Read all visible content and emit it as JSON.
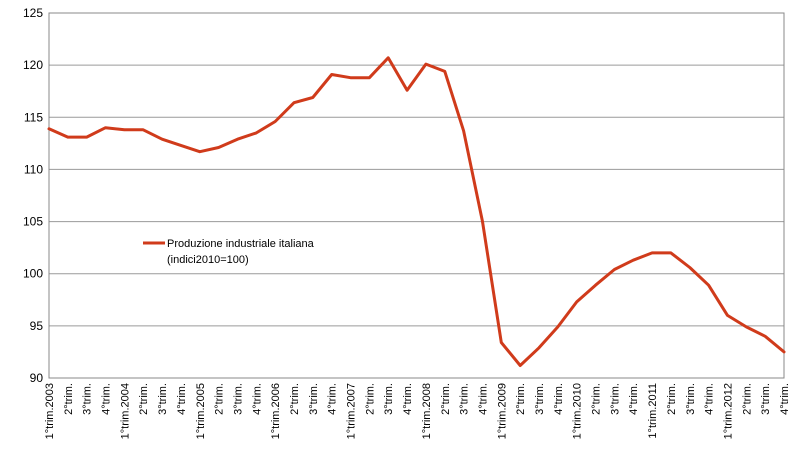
{
  "chart_data": {
    "type": "line",
    "x_label_size": "11px",
    "categories": [
      "1°trim.2003",
      "2°trim.",
      "3°trim.",
      "4°trim.",
      "1°trim.2004",
      "2°trim.",
      "3°trim.",
      "4°trim.",
      "1°trim.2005",
      "2°trim.",
      "3°trim.",
      "4°trim.",
      "1°trim.2006",
      "2°trim.",
      "3°trim.",
      "4°trim.",
      "1°trim.2007",
      "2°trim.",
      "3°trim.",
      "4°trim.",
      "1°trim.2008",
      "2°trim.",
      "3°trim.",
      "4°trim.",
      "1°trim.2009",
      "2°trim.",
      "3°trim.",
      "4°trim.",
      "1°trim.2010",
      "2°trim.",
      "3°trim.",
      "4°trim.",
      "1°trim.2011",
      "2°trim.",
      "3°trim.",
      "4°trim.",
      "1°trim.2012",
      "2°trim.",
      "3°trim.",
      "4°trim."
    ],
    "series": [
      {
        "name": "Produzione industriale italiana (indici2010=100)",
        "color": "#d03b1b",
        "values": [
          113.9,
          113.1,
          113.1,
          114.0,
          113.8,
          113.8,
          112.9,
          112.3,
          111.7,
          112.1,
          112.9,
          113.5,
          114.6,
          116.4,
          116.9,
          119.1,
          118.8,
          118.8,
          120.7,
          117.6,
          120.1,
          119.4,
          113.7,
          105.0,
          93.4,
          91.2,
          92.9,
          94.9,
          97.3,
          98.9,
          100.4,
          101.3,
          102.0,
          102.0,
          100.6,
          98.9,
          96.0,
          94.9,
          94.0,
          92.5
        ]
      }
    ],
    "ylim": [
      90,
      125
    ],
    "yticks": [
      90,
      95,
      100,
      105,
      110,
      115,
      120,
      125
    ],
    "grid": "horizontal",
    "legend": "center-left",
    "legend_lines": [
      "Produzione industriale italiana",
      "(indici2010=100)"
    ],
    "title": "",
    "xlabel": "",
    "ylabel": ""
  }
}
